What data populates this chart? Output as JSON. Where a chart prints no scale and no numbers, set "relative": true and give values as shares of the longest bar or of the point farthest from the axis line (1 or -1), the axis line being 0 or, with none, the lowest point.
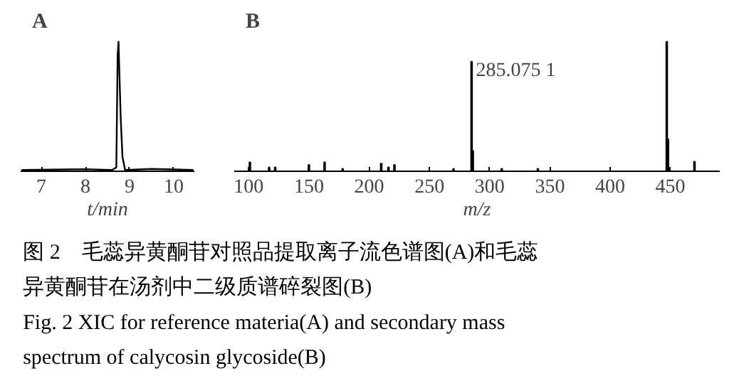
{
  "chart_data": [
    {
      "type": "line",
      "title": "A",
      "xlabel": "t/min",
      "relative": true,
      "xlim": [
        6.53,
        10.47
      ],
      "xticks": [
        7,
        8,
        9,
        10
      ],
      "grid": false,
      "series": [
        {
          "color": "#000000",
          "x": [
            6.55,
            7.5,
            8.0,
            8.6,
            8.7,
            8.73,
            8.75,
            8.77,
            8.8,
            8.84,
            8.9,
            9.5,
            10.45
          ],
          "values": [
            0,
            0.004,
            0.006,
            0,
            0.02,
            0.9,
            1,
            0.75,
            0.4,
            0.1,
            0,
            0.008,
            0
          ]
        }
      ]
    },
    {
      "type": "bar",
      "title": "B",
      "xlabel": "m/z",
      "relative": true,
      "xlim": [
        88,
        491
      ],
      "xticks": [
        100,
        150,
        200,
        250,
        300,
        350,
        400,
        450
      ],
      "grid": false,
      "x": [
        101,
        117,
        122,
        150,
        163,
        178,
        210,
        216,
        221,
        270,
        285,
        286,
        310,
        340,
        447,
        448,
        470
      ],
      "series": [
        {
          "color": "#000000",
          "values": [
            0.06,
            0.02,
            0.02,
            0.04,
            0.06,
            0.01,
            0.05,
            0.02,
            0.04,
            0.01,
            0.845,
            0.15,
            0.01,
            0.01,
            1,
            0.24,
            0.065
          ]
        }
      ],
      "annotations": [
        {
          "text": "285.075 1",
          "x": 285,
          "y": 0.845
        }
      ]
    },
    {
      "type": "other",
      "annotations": [
        "图 2　毛蕊异黄酮苷对照品提取离子流色谱图(A)和毛蕊",
        "异黄酮苷在汤剂中二级质谱碎裂图(B)",
        "Fig. 2  XIC for reference materia(A) and secondary mass",
        "spectrum of calycosin glycoside(B)"
      ]
    }
  ]
}
